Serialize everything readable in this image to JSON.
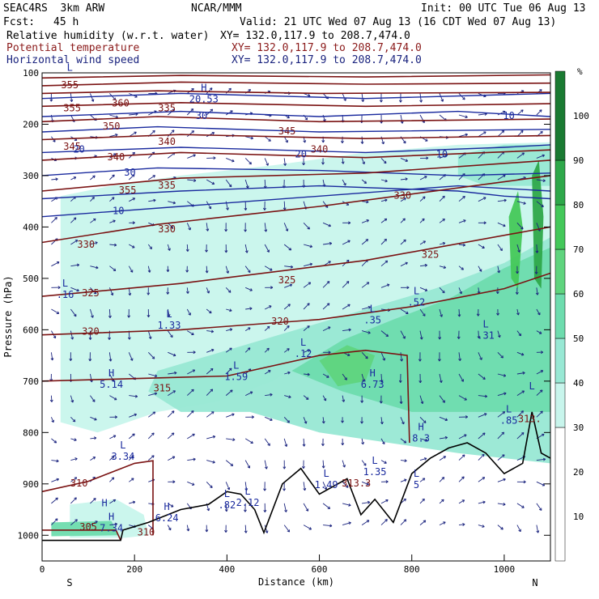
{
  "header": {
    "model": "SEAC4RS  3km ARW",
    "org": "NCAR/MMM",
    "init": "Init: 00 UTC Tue 06 Aug 13",
    "fcst_label": "Fcst:",
    "fcst_value": "45 h",
    "valid": "Valid: 21 UTC Wed 07 Aug 13 (16 CDT Wed 07 Aug 13)",
    "fields": [
      {
        "name": "Relative humidity (w.r.t. water)",
        "xy": "XY= 132.0,117.9 to 208.7,474.0",
        "color": "#000000"
      },
      {
        "name": "Potential temperature",
        "xy": "XY= 132.0,117.9 to 208.7,474.0",
        "color": "#8b1a1a"
      },
      {
        "name": "Horizontal wind speed",
        "xy": "XY= 132.0,117.9 to 208.7,474.0",
        "color": "#1a237e"
      }
    ]
  },
  "chart_data": {
    "type": "heatmap",
    "xlabel": "Distance (km)",
    "ylabel": "Pressure (hPa)",
    "xlim": [
      0,
      1100
    ],
    "ylim": [
      1050,
      100
    ],
    "x_ticks": [
      0,
      200,
      400,
      600,
      800,
      1000
    ],
    "y_ticks": [
      100,
      200,
      300,
      400,
      500,
      600,
      700,
      800,
      900,
      1000
    ],
    "x_end_labels": {
      "left": "S",
      "right": "N"
    },
    "colorbar": {
      "unit": "%",
      "ticks": [
        10,
        20,
        30,
        40,
        50,
        60,
        70,
        80,
        90,
        100
      ],
      "bands": [
        {
          "from": 0,
          "to": 30,
          "color": "#ffffff"
        },
        {
          "from": 30,
          "to": 40,
          "color": "#c8f5ec"
        },
        {
          "from": 40,
          "to": 50,
          "color": "#98e8d4"
        },
        {
          "from": 50,
          "to": 60,
          "color": "#6edcae"
        },
        {
          "from": 60,
          "to": 70,
          "color": "#5fd47e"
        },
        {
          "from": 70,
          "to": 80,
          "color": "#44c85a"
        },
        {
          "from": 80,
          "to": 90,
          "color": "#2ea84a"
        },
        {
          "from": 90,
          "to": 110,
          "color": "#1a7a32"
        }
      ]
    },
    "theta_labels": [
      {
        "v": "355",
        "x": 60,
        "p": 130
      },
      {
        "v": "355",
        "x": 65,
        "p": 175
      },
      {
        "v": "360",
        "x": 170,
        "p": 165
      },
      {
        "v": "335",
        "x": 270,
        "p": 175
      },
      {
        "v": "350",
        "x": 150,
        "p": 210
      },
      {
        "v": "345",
        "x": 65,
        "p": 250
      },
      {
        "v": "340",
        "x": 270,
        "p": 240
      },
      {
        "v": "340",
        "x": 160,
        "p": 270
      },
      {
        "v": "345",
        "x": 530,
        "p": 220
      },
      {
        "v": "340",
        "x": 600,
        "p": 255
      },
      {
        "v": "335",
        "x": 270,
        "p": 325
      },
      {
        "v": "355",
        "x": 185,
        "p": 335
      },
      {
        "v": "330",
        "x": 780,
        "p": 345
      },
      {
        "v": "330",
        "x": 270,
        "p": 410
      },
      {
        "v": "330",
        "x": 95,
        "p": 440
      },
      {
        "v": "325",
        "x": 840,
        "p": 460
      },
      {
        "v": "325",
        "x": 530,
        "p": 510
      },
      {
        "v": "325",
        "x": 105,
        "p": 535
      },
      {
        "v": "320",
        "x": 515,
        "p": 590
      },
      {
        "v": "320",
        "x": 105,
        "p": 610
      },
      {
        "v": "315",
        "x": 260,
        "p": 720
      },
      {
        "v": "310",
        "x": 80,
        "p": 905
      },
      {
        "v": "305",
        "x": 100,
        "p": 990
      },
      {
        "v": "310",
        "x": 225,
        "p": 1000
      },
      {
        "v": "313.3",
        "x": 680,
        "p": 905
      },
      {
        "v": "313.",
        "x": 1055,
        "p": 780
      }
    ],
    "wind_labels": [
      {
        "v": "30",
        "x": 345,
        "p": 190
      },
      {
        "v": "20",
        "x": 80,
        "p": 255
      },
      {
        "v": "20",
        "x": 560,
        "p": 265
      },
      {
        "v": "10",
        "x": 165,
        "p": 375
      },
      {
        "v": "30",
        "x": 190,
        "p": 300
      },
      {
        "v": "10",
        "x": 1010,
        "p": 190
      },
      {
        "v": "10",
        "x": 865,
        "p": 265
      }
    ],
    "extrema": [
      {
        "t": "H",
        "v": "20.53",
        "x": 350,
        "p": 150
      },
      {
        "t": "L",
        "v": "",
        "x": 60,
        "p": 110
      },
      {
        "t": "L",
        "v": ".16",
        "x": 50,
        "p": 530
      },
      {
        "t": "L",
        "v": "1.33",
        "x": 275,
        "p": 590
      },
      {
        "t": "L",
        "v": ".12",
        "x": 565,
        "p": 645
      },
      {
        "t": "L",
        "v": "1.59",
        "x": 420,
        "p": 690
      },
      {
        "t": "L",
        "v": ".35",
        "x": 715,
        "p": 580
      },
      {
        "t": "L",
        "v": ".52",
        "x": 810,
        "p": 545
      },
      {
        "t": "L",
        "v": ".31",
        "x": 960,
        "p": 610
      },
      {
        "t": "H",
        "v": "5.14",
        "x": 150,
        "p": 705
      },
      {
        "t": "H",
        "v": "6.73",
        "x": 715,
        "p": 705
      },
      {
        "t": "L",
        "v": "3.34",
        "x": 175,
        "p": 845
      },
      {
        "t": "H",
        "v": "8.3",
        "x": 820,
        "p": 810
      },
      {
        "t": "L",
        "v": ".85",
        "x": 1010,
        "p": 775
      },
      {
        "t": "L",
        "v": "1.49",
        "x": 615,
        "p": 900
      },
      {
        "t": "L",
        "v": "1.35",
        "x": 720,
        "p": 875
      },
      {
        "t": "L",
        "v": ".82",
        "x": 400,
        "p": 940
      },
      {
        "t": "L",
        "v": "2.12",
        "x": 445,
        "p": 935
      },
      {
        "t": "H",
        "v": "6.24",
        "x": 270,
        "p": 965
      },
      {
        "t": "H",
        "v": "7.34",
        "x": 150,
        "p": 985
      },
      {
        "t": "H",
        "v": "",
        "x": 135,
        "p": 958
      },
      {
        "t": "L",
        "v": "5",
        "x": 810,
        "p": 900
      },
      {
        "t": "L",
        "v": "",
        "x": 1060,
        "p": 730
      }
    ]
  }
}
